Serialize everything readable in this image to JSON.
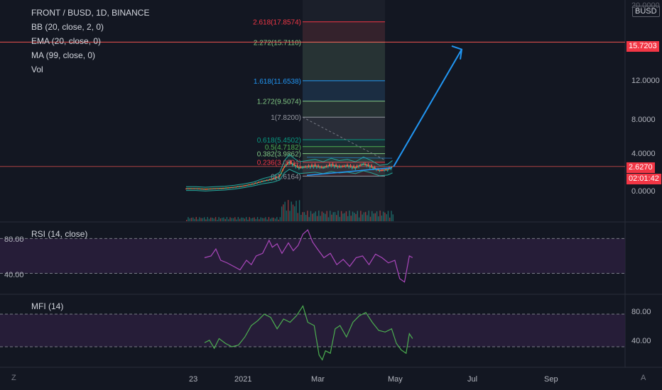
{
  "header": {
    "symbol": "FRONT / BUSD, 1D, BINANCE",
    "indicators": [
      "BB (20, close, 2, 0)",
      "EMA (20, close, 0)",
      "MA (99, close, 0)",
      "Vol"
    ]
  },
  "currency": "BUSD",
  "price_axis": {
    "top_partial": "20.0000",
    "ticks": [
      "12.0000",
      "8.0000",
      "4.0000",
      "0.0000"
    ],
    "target_tag": "15.7203",
    "current_tag": "2.6270",
    "countdown": "02:01:42"
  },
  "time_axis": [
    "23",
    "2021",
    "Mar",
    "May",
    "Jul",
    "Sep"
  ],
  "rsi_pane": {
    "label": "RSI (14, close)",
    "ticks": [
      "80.00",
      "40.00"
    ]
  },
  "mfi_pane": {
    "label": "MFI (14)",
    "ticks": [
      "80.00",
      "40.00"
    ]
  },
  "corner_buttons": {
    "zoom": "Z",
    "auto": "A"
  },
  "colors": {
    "background": "#131722",
    "up": "#26a69a",
    "down": "#ef5350",
    "arrow": "#2196f3",
    "rsi": "#ab47bc",
    "mfi": "#4caf50",
    "band_fill": "#2a1e3c"
  },
  "chart_data": [
    {
      "type": "line",
      "pane": "price",
      "fib_levels": [
        {
          "label": "0(1.6164)",
          "ratio": 0,
          "price": 1.6164,
          "color": "#9598a1"
        },
        {
          "label": "0.236(3.0804)",
          "ratio": 0.236,
          "price": 3.0804,
          "color": "#f23645"
        },
        {
          "label": "0.382(3.9862)",
          "ratio": 0.382,
          "price": 3.9862,
          "color": "#81c784"
        },
        {
          "label": "0.5(4.7182)",
          "ratio": 0.5,
          "price": 4.7182,
          "color": "#4caf50"
        },
        {
          "label": "0.618(5.4502)",
          "ratio": 0.618,
          "price": 5.4502,
          "color": "#089981"
        },
        {
          "label": "1(7.8200)",
          "ratio": 1,
          "price": 7.82,
          "color": "#9598a1"
        },
        {
          "label": "1.272(9.5074)",
          "ratio": 1.272,
          "price": 9.5074,
          "color": "#81c784"
        },
        {
          "label": "1.618(11.6538)",
          "ratio": 1.618,
          "price": 11.6538,
          "color": "#2196f3"
        },
        {
          "label": "2.272(15.7110)",
          "ratio": 2.272,
          "price": 15.711,
          "color": "#81c784"
        },
        {
          "label": "2.618(17.8574)",
          "ratio": 2.618,
          "price": 17.8574,
          "color": "#f23645"
        }
      ],
      "target_price": 15.7203,
      "current_price": 2.627,
      "ylim": [
        0,
        20
      ],
      "price_path": [
        [
          0,
          0.3
        ],
        [
          12,
          0.3
        ],
        [
          24,
          0.25
        ],
        [
          36,
          0.3
        ],
        [
          48,
          0.35
        ],
        [
          60,
          0.45
        ],
        [
          72,
          0.6
        ],
        [
          84,
          0.8
        ],
        [
          96,
          1.1
        ],
        [
          108,
          1.3
        ],
        [
          116,
          1.6
        ],
        [
          122,
          2.6
        ],
        [
          128,
          3.1
        ],
        [
          134,
          2.8
        ],
        [
          140,
          2.5
        ],
        [
          150,
          2.6
        ],
        [
          160,
          2.7
        ],
        [
          170,
          2.5
        ],
        [
          180,
          2.8
        ],
        [
          190,
          2.6
        ],
        [
          200,
          2.7
        ],
        [
          210,
          2.5
        ],
        [
          220,
          2.9
        ],
        [
          230,
          2.6
        ],
        [
          240,
          2.2
        ],
        [
          250,
          2.3
        ],
        [
          256,
          2.6
        ]
      ]
    },
    {
      "type": "line",
      "pane": "rsi",
      "name": "RSI (14, close)",
      "ylim": [
        20,
        95
      ],
      "values": [
        [
          0,
          58
        ],
        [
          8,
          60
        ],
        [
          14,
          68
        ],
        [
          20,
          55
        ],
        [
          28,
          52
        ],
        [
          36,
          48
        ],
        [
          44,
          44
        ],
        [
          52,
          55
        ],
        [
          58,
          50
        ],
        [
          64,
          60
        ],
        [
          72,
          63
        ],
        [
          80,
          78
        ],
        [
          84,
          70
        ],
        [
          90,
          74
        ],
        [
          96,
          63
        ],
        [
          104,
          75
        ],
        [
          110,
          66
        ],
        [
          116,
          72
        ],
        [
          122,
          85
        ],
        [
          128,
          90
        ],
        [
          134,
          76
        ],
        [
          140,
          68
        ],
        [
          148,
          58
        ],
        [
          156,
          63
        ],
        [
          164,
          50
        ],
        [
          172,
          56
        ],
        [
          180,
          48
        ],
        [
          188,
          58
        ],
        [
          196,
          60
        ],
        [
          204,
          50
        ],
        [
          212,
          62
        ],
        [
          220,
          58
        ],
        [
          228,
          52
        ],
        [
          236,
          55
        ],
        [
          242,
          34
        ],
        [
          248,
          30
        ],
        [
          254,
          60
        ],
        [
          258,
          58
        ]
      ]
    },
    {
      "type": "line",
      "pane": "mfi",
      "name": "MFI (14)",
      "ylim": [
        20,
        100
      ],
      "values": [
        [
          0,
          45
        ],
        [
          6,
          48
        ],
        [
          12,
          38
        ],
        [
          18,
          50
        ],
        [
          26,
          44
        ],
        [
          34,
          40
        ],
        [
          42,
          42
        ],
        [
          50,
          52
        ],
        [
          58,
          66
        ],
        [
          66,
          72
        ],
        [
          74,
          80
        ],
        [
          82,
          76
        ],
        [
          90,
          62
        ],
        [
          98,
          74
        ],
        [
          106,
          70
        ],
        [
          114,
          78
        ],
        [
          122,
          90
        ],
        [
          128,
          70
        ],
        [
          136,
          66
        ],
        [
          142,
          30
        ],
        [
          146,
          24
        ],
        [
          150,
          35
        ],
        [
          156,
          32
        ],
        [
          162,
          62
        ],
        [
          168,
          66
        ],
        [
          176,
          52
        ],
        [
          184,
          70
        ],
        [
          192,
          78
        ],
        [
          200,
          82
        ],
        [
          208,
          70
        ],
        [
          216,
          60
        ],
        [
          224,
          58
        ],
        [
          232,
          62
        ],
        [
          238,
          44
        ],
        [
          244,
          36
        ],
        [
          250,
          32
        ],
        [
          254,
          56
        ],
        [
          258,
          50
        ]
      ]
    }
  ]
}
